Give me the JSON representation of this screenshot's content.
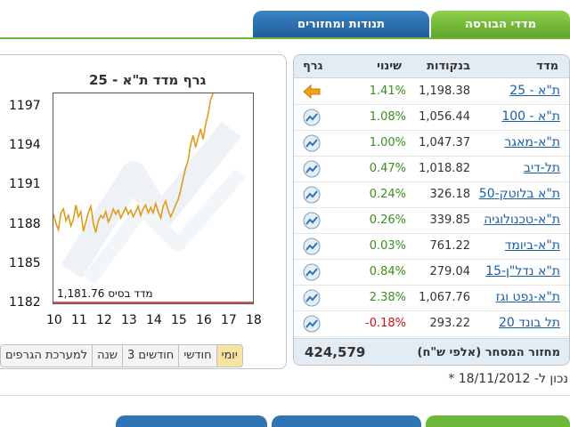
{
  "tabs": {
    "indices": "מדדי הבורסה",
    "trades": "תנודות ומחזורים"
  },
  "table": {
    "headers": {
      "index": "מדד",
      "points": "בנקודות",
      "change": "שינוי",
      "graph": "גרף"
    },
    "rows": [
      {
        "name": "ת\"א - 25",
        "points": "1,198.38",
        "change": "1.41%",
        "icon": "arrow-left-icon"
      },
      {
        "name": "ת\"א - 100",
        "points": "1,056.44",
        "change": "1.08%",
        "icon": "chart-icon"
      },
      {
        "name": "ת\"א-מאגר",
        "points": "1,047.37",
        "change": "1.00%",
        "icon": "chart-icon"
      },
      {
        "name": "תל-דיב",
        "points": "1,018.82",
        "change": "0.47%",
        "icon": "chart-icon"
      },
      {
        "name": "ת\"א בלוטק-50",
        "points": "326.18",
        "change": "0.24%",
        "icon": "chart-icon"
      },
      {
        "name": "ת\"א-טכנולוגיה",
        "points": "339.85",
        "change": "0.26%",
        "icon": "chart-icon"
      },
      {
        "name": "ת\"א-ביומד",
        "points": "761.22",
        "change": "0.03%",
        "icon": "chart-icon"
      },
      {
        "name": "ת\"א נדל\"ן-15",
        "points": "279.04",
        "change": "0.84%",
        "icon": "chart-icon"
      },
      {
        "name": "ת\"א-נפט וגז",
        "points": "1,067.76",
        "change": "2.38%",
        "icon": "chart-icon"
      },
      {
        "name": "תל בונד 20",
        "points": "293.22",
        "change": "-0.18%",
        "icon": "chart-icon"
      }
    ],
    "footer_label": "מחזור המסחר (אלפי ש\"ח)",
    "footer_value": "424,579",
    "as_of": "* נכון ל- 18/11/2012"
  },
  "chart_panel": {
    "base_label": "מדד בסיס 1,181.76",
    "range_buttons": [
      "יומי",
      "חודשי",
      "3 חודשים",
      "שנה",
      "למערכת הגרפים"
    ],
    "active_range": "יומי"
  },
  "colors": {
    "positive": "#3a8f1c",
    "negative": "#cc1111",
    "series": "#e39a1a",
    "tab_green": "#6db83a",
    "tab_blue": "#2f74b5"
  },
  "chart_data": {
    "type": "line",
    "title": "גרף מדד ת\"א - 25",
    "xlabel": "",
    "ylabel": "",
    "x_ticks": [
      10,
      11,
      12,
      13,
      14,
      15,
      16,
      17,
      18
    ],
    "y_ticks": [
      1182,
      1185,
      1188,
      1191,
      1194,
      1197
    ],
    "xlim": [
      10,
      18
    ],
    "ylim": [
      1182,
      1198
    ],
    "baseline": 1181.76,
    "series": [
      {
        "x": [
          10.0,
          10.1,
          10.2,
          10.3,
          10.4,
          10.5,
          10.6,
          10.7,
          10.8,
          10.9,
          11.0,
          11.1,
          11.2,
          11.3,
          11.4,
          11.5,
          11.6,
          11.7,
          11.8,
          11.9,
          12.0,
          12.1,
          12.2,
          12.3,
          12.4,
          12.5,
          12.6,
          12.7,
          12.8,
          12.9,
          13.0,
          13.1,
          13.2,
          13.3,
          13.4,
          13.5,
          13.6,
          13.7,
          13.8,
          13.9,
          14.0,
          14.1,
          14.2,
          14.3,
          14.4,
          14.5,
          14.6,
          14.7,
          14.8,
          14.9,
          15.0,
          15.1,
          15.2,
          15.3,
          15.4,
          15.5,
          15.6,
          15.7,
          15.8,
          15.9,
          16.0,
          16.1,
          16.2,
          16.3,
          16.4
        ],
        "values": [
          1188.8,
          1188.1,
          1187.6,
          1188.9,
          1189.2,
          1188.3,
          1188.7,
          1187.9,
          1188.4,
          1189.5,
          1188.6,
          1189.0,
          1187.5,
          1188.2,
          1188.9,
          1189.4,
          1188.1,
          1187.4,
          1188.3,
          1188.7,
          1188.5,
          1189.0,
          1188.2,
          1188.6,
          1189.2,
          1188.8,
          1189.1,
          1188.5,
          1188.9,
          1189.3,
          1188.8,
          1189.1,
          1188.6,
          1189.0,
          1189.4,
          1188.7,
          1189.2,
          1189.5,
          1188.9,
          1189.3,
          1188.9,
          1189.6,
          1189.0,
          1188.5,
          1189.4,
          1189.8,
          1189.1,
          1188.6,
          1189.0,
          1189.5,
          1189.9,
          1190.6,
          1191.5,
          1192.3,
          1192.9,
          1194.1,
          1194.8,
          1193.9,
          1194.6,
          1195.3,
          1194.5,
          1195.6,
          1196.4,
          1197.5,
          1198.3
        ]
      }
    ]
  }
}
